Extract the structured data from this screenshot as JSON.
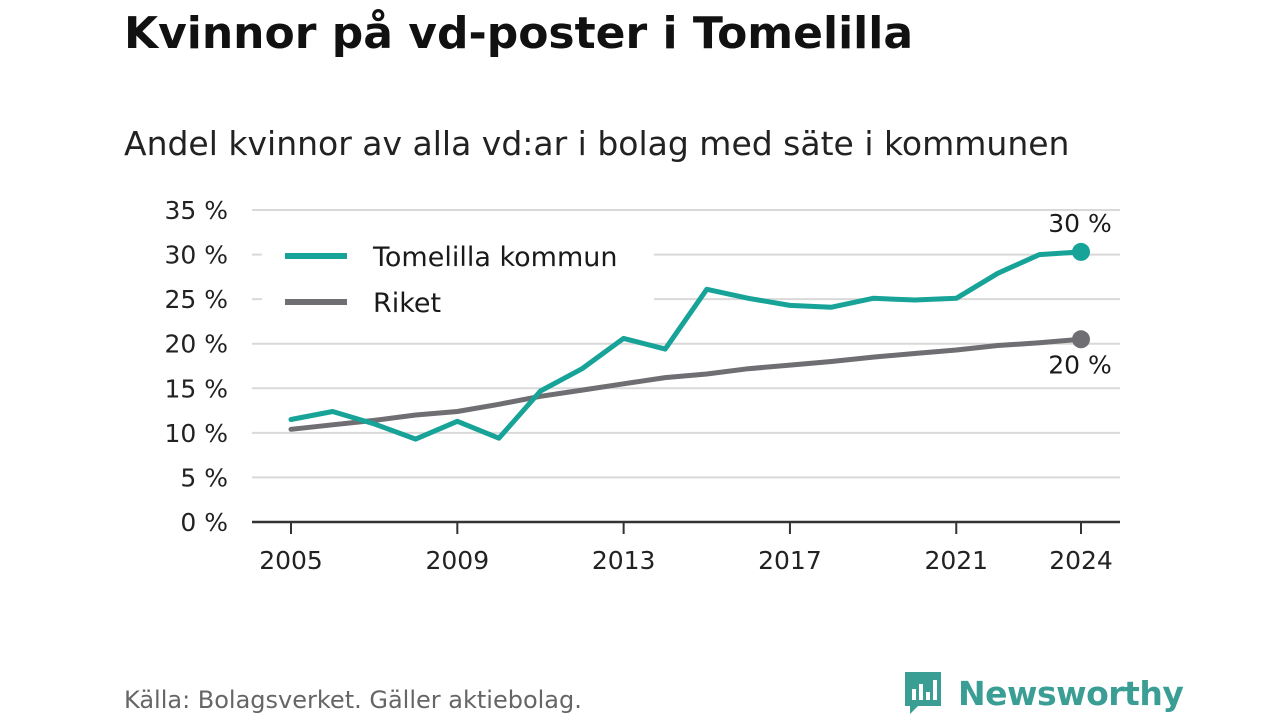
{
  "title": "Kvinnor på vd-poster i Tomelilla",
  "subtitle": "Andel kvinnor av alla vd:ar i bolag med säte i kommunen",
  "source": "Källa: Bolagsverket. Gäller aktiebolag.",
  "brand": {
    "name": "Newsworthy",
    "icon": "newsworthy-logo-icon",
    "color": "#3a9e94"
  },
  "chart_data": {
    "type": "line",
    "x": [
      2005,
      2006,
      2007,
      2008,
      2009,
      2010,
      2011,
      2012,
      2013,
      2014,
      2015,
      2016,
      2017,
      2018,
      2019,
      2020,
      2021,
      2022,
      2023,
      2024
    ],
    "xticks": [
      2005,
      2009,
      2013,
      2017,
      2021,
      2024
    ],
    "xtick_labels": [
      "2005",
      "2009",
      "2013",
      "2017",
      "2021",
      "2024"
    ],
    "yticks": [
      0,
      5,
      10,
      15,
      20,
      25,
      30,
      35
    ],
    "ytick_labels": [
      "0 %",
      "5 %",
      "10 %",
      "15 %",
      "20 %",
      "25 %",
      "30 %",
      "35 %"
    ],
    "ylim": [
      0,
      35
    ],
    "xlim": [
      2005,
      2024
    ],
    "grid": true,
    "legend_position": "top-left",
    "series": [
      {
        "name": "Tomelilla kommun",
        "color": "#17a398",
        "values": [
          11.5,
          12.4,
          11.0,
          9.3,
          11.3,
          9.4,
          14.7,
          17.2,
          20.6,
          19.4,
          26.1,
          25.1,
          24.3,
          24.1,
          25.1,
          24.9,
          25.1,
          27.9,
          30.0,
          30.3
        ],
        "end_label": "30 %"
      },
      {
        "name": "Riket",
        "color": "#6e6e73",
        "values": [
          10.4,
          10.9,
          11.4,
          12.0,
          12.4,
          13.2,
          14.1,
          14.8,
          15.5,
          16.2,
          16.6,
          17.2,
          17.6,
          18.0,
          18.5,
          18.9,
          19.3,
          19.8,
          20.1,
          20.5
        ],
        "end_label": "20 %"
      }
    ]
  }
}
